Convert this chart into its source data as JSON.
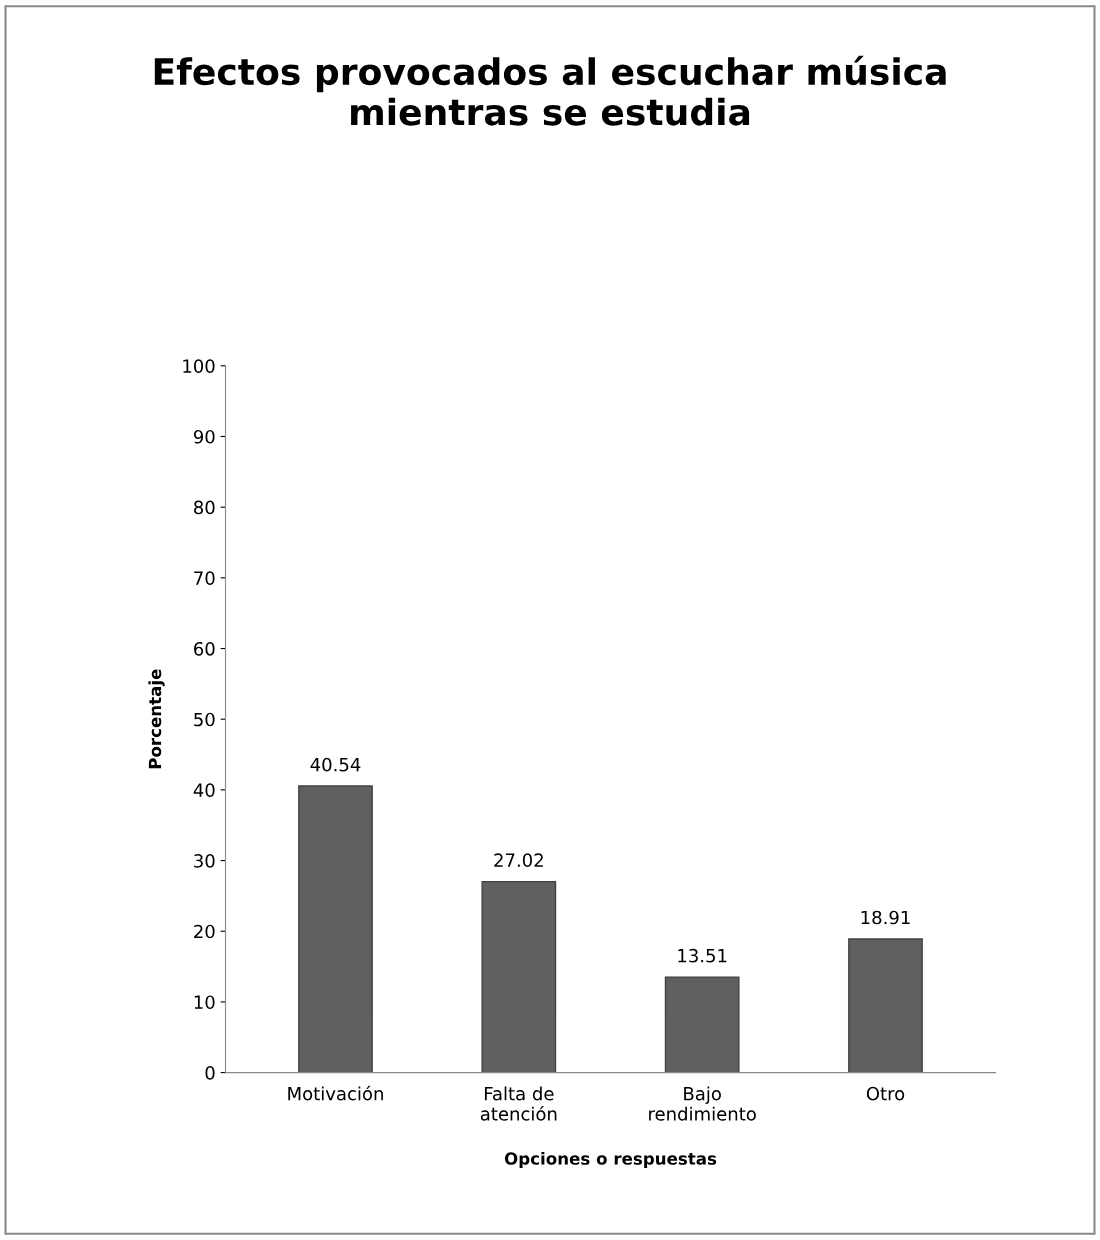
{
  "chart_data": {
    "type": "bar",
    "title": "Efectos provocados al escuchar música\nmientras se estudia",
    "xlabel": "Opciones o respuestas",
    "ylabel": "Porcentaje",
    "categories": [
      "Motivación",
      "Falta de\natención",
      "Bajo\nrendimiento",
      "Otro"
    ],
    "values": [
      40.54,
      27.02,
      13.51,
      18.91
    ],
    "color": "#606060",
    "ylim": [
      0,
      100
    ],
    "yticks": [
      0,
      10,
      20,
      30,
      40,
      50,
      60,
      70,
      80,
      90,
      100
    ],
    "data_labels": true,
    "grid": false,
    "legend": false
  }
}
